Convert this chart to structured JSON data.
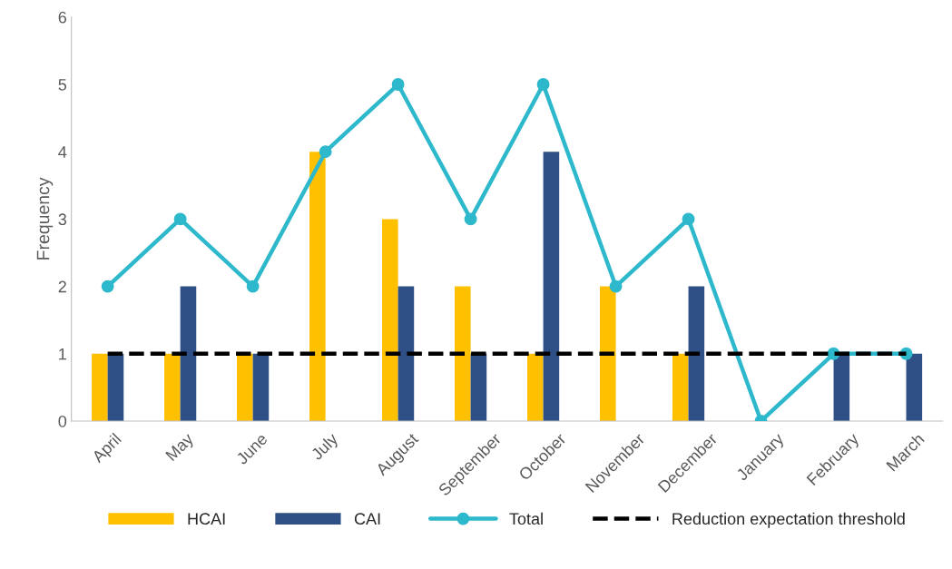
{
  "chart_data": {
    "type": "bar",
    "ylabel": "Frequency",
    "categories": [
      "April",
      "May",
      "June",
      "July",
      "August",
      "September",
      "October",
      "November",
      "December",
      "January",
      "February",
      "March"
    ],
    "series": [
      {
        "name": "HCAI",
        "color": "#ffc000",
        "values": [
          1,
          1,
          1,
          4,
          3,
          2,
          1,
          2,
          1,
          0,
          0,
          0
        ]
      },
      {
        "name": "CAI",
        "color": "#2f5086",
        "values": [
          1,
          2,
          1,
          0,
          2,
          1,
          4,
          0,
          2,
          0,
          1,
          1
        ]
      },
      {
        "name": "Total",
        "type": "line",
        "color": "#2eb8cc",
        "marker": "circle",
        "line_style": "solid",
        "values": [
          2,
          3,
          2,
          4,
          5,
          3,
          5,
          2,
          3,
          0,
          1,
          1
        ]
      },
      {
        "name": "Reduction expectation threshold",
        "type": "line",
        "color": "#000000",
        "marker": "none",
        "line_style": "dashed",
        "values": [
          1,
          1,
          1,
          1,
          1,
          1,
          1,
          1,
          1,
          1,
          1,
          1
        ]
      }
    ],
    "ylim": [
      0,
      6
    ],
    "yticks": [
      0,
      1,
      2,
      3,
      4,
      5,
      6
    ],
    "grid": false,
    "legend": "bottom"
  }
}
